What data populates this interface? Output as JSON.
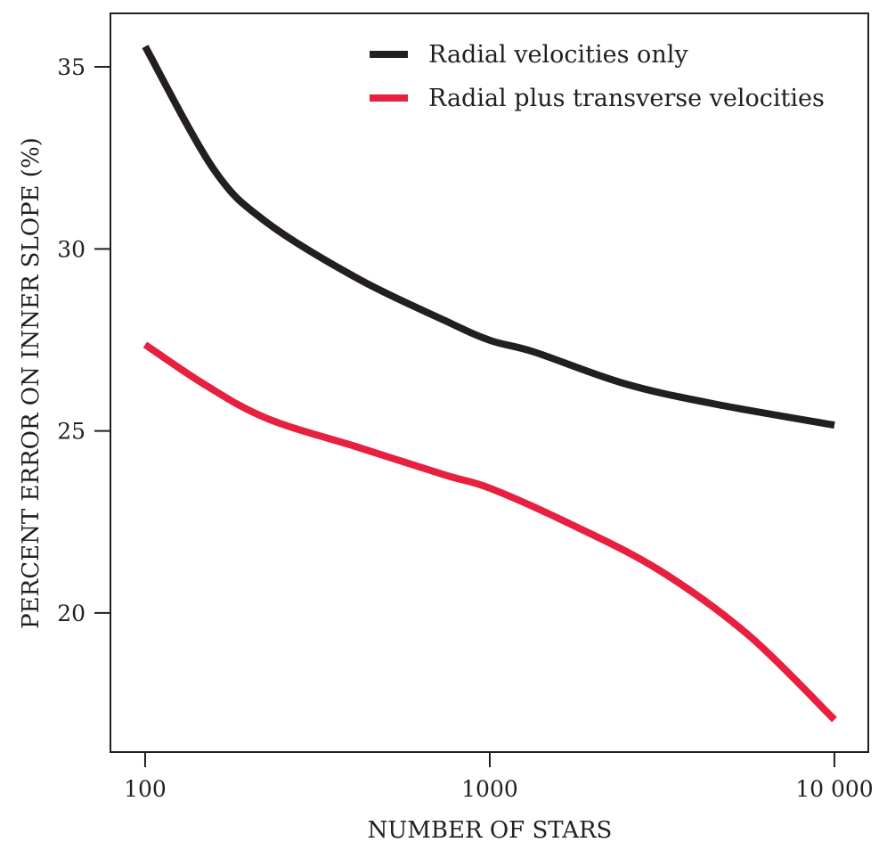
{
  "chart_data": {
    "type": "line",
    "title": "",
    "xlabel": "NUMBER OF STARS",
    "ylabel": "PERCENT ERROR ON INNER SLOPE (%)",
    "xscale": "log",
    "xlim": [
      79.3,
      12540
    ],
    "ylim": [
      16.18,
      36.47
    ],
    "grid": false,
    "legend_position": "top-right",
    "x_ticks": [
      {
        "value": 100,
        "label": "100"
      },
      {
        "value": 1000,
        "label": "1000"
      },
      {
        "value": 10000,
        "label": "10 000"
      }
    ],
    "y_ticks": [
      {
        "value": 20,
        "label": "20"
      },
      {
        "value": 25,
        "label": "25"
      },
      {
        "value": 30,
        "label": "30"
      },
      {
        "value": 35,
        "label": "35"
      }
    ],
    "series": [
      {
        "name": "Radial velocities only",
        "color": "#231f20",
        "x": [
          100,
          158,
          226,
          415,
          741,
          1000,
          1344,
          2440,
          4437,
          10000
        ],
        "y": [
          35.56,
          32.19,
          30.72,
          29.18,
          28.03,
          27.49,
          27.17,
          26.31,
          25.75,
          25.16
        ]
      },
      {
        "name": "Radial plus transverse velocities",
        "color": "#e8203f",
        "x": [
          100,
          149,
          226,
          415,
          741,
          1000,
          1707,
          3095,
          5604,
          10000
        ],
        "y": [
          27.37,
          26.27,
          25.34,
          24.55,
          23.79,
          23.43,
          22.45,
          21.18,
          19.41,
          17.07
        ]
      }
    ]
  }
}
